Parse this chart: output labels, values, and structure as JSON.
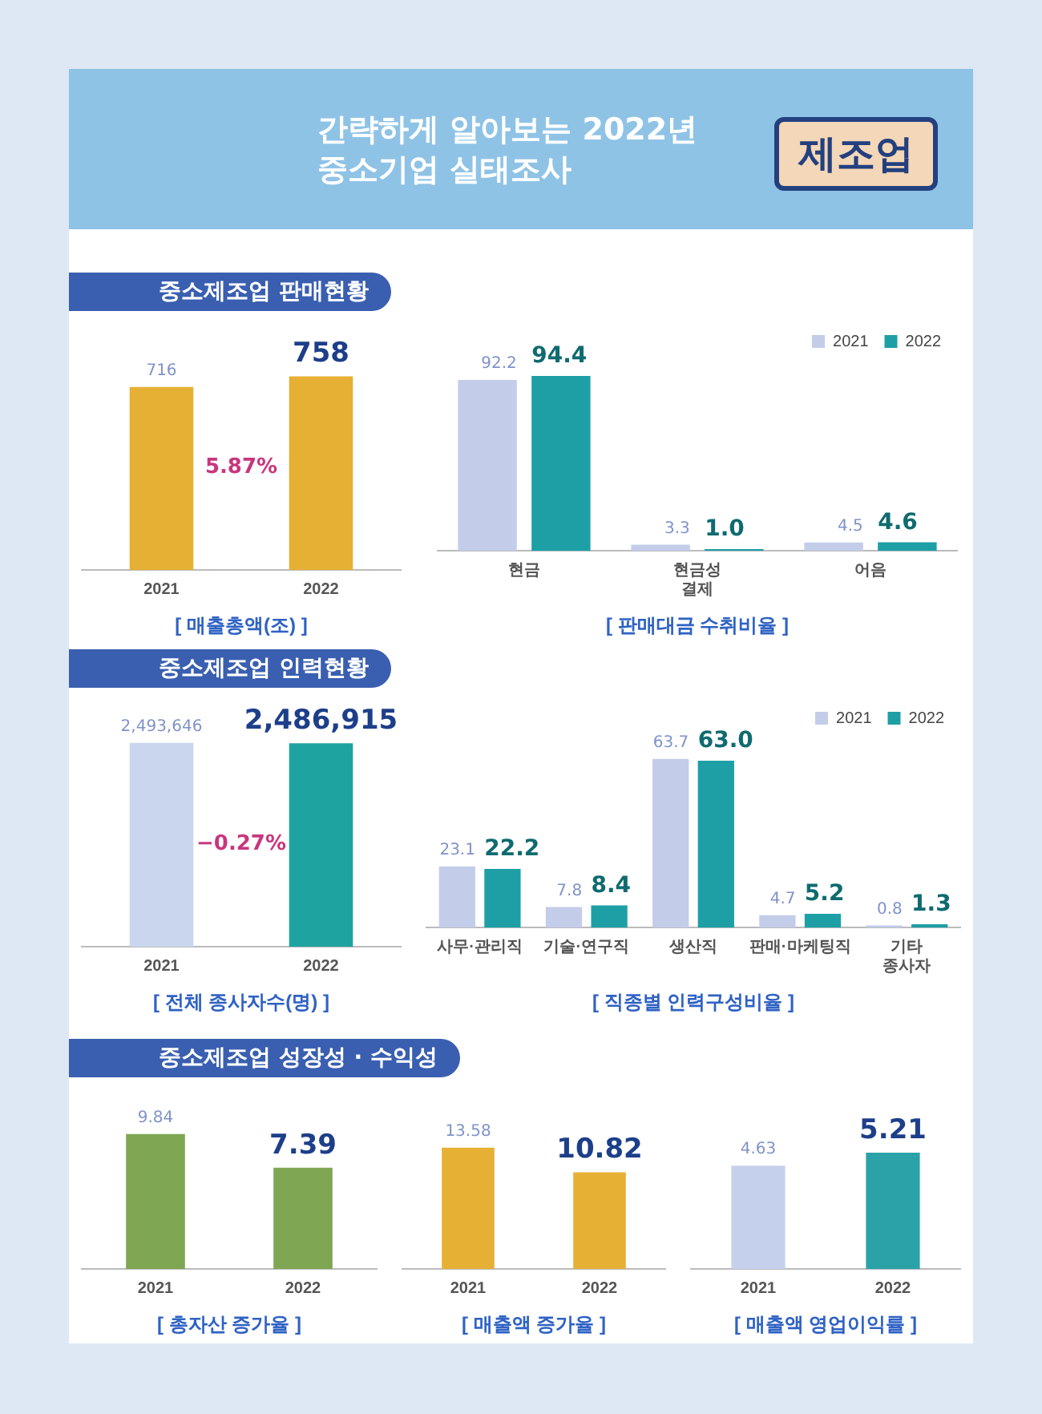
{
  "chart_data": [
    {
      "type": "other",
      "title": "간략하게 알아보는 2022년 중소기업 실태조사",
      "annotations": [
        "제조업"
      ]
    },
    {
      "type": "bar",
      "subtitle": "중소제조업 판매현황",
      "xlabel": "[ 매출총액(조) ]",
      "categories": [
        "2021",
        "2022"
      ],
      "values": [
        716,
        758
      ],
      "colors": [
        "#e6b035",
        "#e6b035"
      ],
      "data_labels": true,
      "annotations": [
        "5.87%"
      ]
    },
    {
      "type": "bar",
      "xlabel": "[ 판매대금 수취비율 ]",
      "categories": [
        "현금",
        "현금성 결제",
        "어음"
      ],
      "legend": "top right",
      "data_labels": true,
      "series": [
        {
          "name": "2021",
          "color": "#c3cdea",
          "values": [
            92.2,
            3.3,
            4.5
          ]
        },
        {
          "name": "2022",
          "color": "#1e9fa6",
          "values": [
            94.4,
            1.0,
            4.6
          ],
          "value_labels": [
            "94.4",
            "1.0",
            "4.6"
          ]
        }
      ]
    },
    {
      "type": "bar",
      "subtitle": "중소제조업 인력현황",
      "xlabel": "[ 전체 종사자수(명) ]",
      "categories": [
        "2021",
        "2022"
      ],
      "values": [
        2493646,
        2486915
      ],
      "value_labels": [
        "2,493,646",
        "2,486,915"
      ],
      "colors": [
        "#c9d6ee",
        "#1fa3a0"
      ],
      "annotations": [
        "−0.27%"
      ]
    },
    {
      "type": "bar",
      "xlabel": "[ 직종별 인력구성비율 ]",
      "categories": [
        "사무·관리직",
        "기술·연구직",
        "생산직",
        "판매·마케팅직",
        "기타 종사자"
      ],
      "legend": "top right",
      "data_labels": true,
      "series": [
        {
          "name": "2021",
          "color": "#c3cdea",
          "values": [
            23.1,
            7.8,
            63.7,
            4.7,
            0.8
          ]
        },
        {
          "name": "2022",
          "color": "#1e9fa6",
          "values": [
            22.2,
            8.4,
            63.0,
            5.2,
            1.3
          ],
          "value_labels": [
            "22.2",
            "8.4",
            "63.0",
            "5.2",
            "1.3"
          ]
        }
      ]
    },
    {
      "type": "bar",
      "subtitle": "중소제조업 성장성 · 수익성",
      "xlabel": "[ 총자산 증가율 ]",
      "categories": [
        "2021",
        "2022"
      ],
      "values": [
        9.84,
        7.39
      ],
      "colors": [
        "#7fa652",
        "#7fa652"
      ],
      "data_labels": true
    },
    {
      "type": "bar",
      "xlabel": "[ 매출액 증가율 ]",
      "categories": [
        "2021",
        "2022"
      ],
      "values": [
        13.58,
        10.82
      ],
      "colors": [
        "#e6b035",
        "#e6b035"
      ],
      "data_labels": true
    },
    {
      "type": "bar",
      "xlabel": "[ 매출액 영업이익률 ]",
      "categories": [
        "2021",
        "2022"
      ],
      "values": [
        4.63,
        5.21
      ],
      "colors": [
        "#c5d0ec",
        "#2aa2a8"
      ],
      "data_labels": true
    }
  ]
}
